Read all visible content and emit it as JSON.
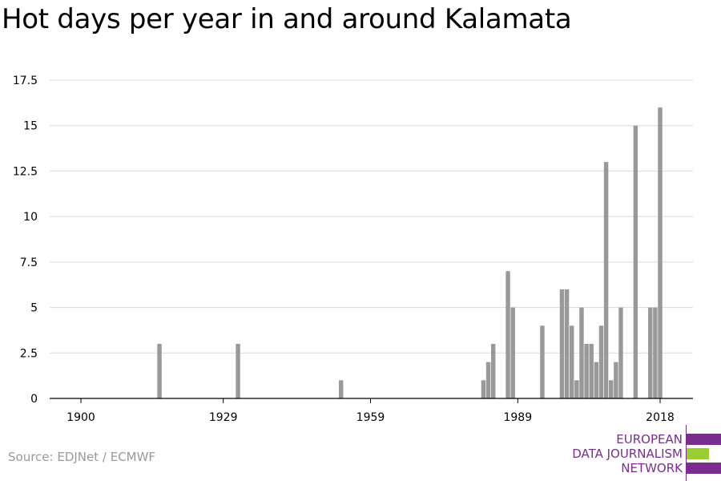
{
  "title": "Hot days per year in and around Kalamata",
  "source": "Source: EDJNet / ECMWF",
  "logo": {
    "line1": "EUROPEAN",
    "line2": "DATA JOURNALISM",
    "line3": "NETWORK",
    "colors": {
      "purple": "#7b2d8e",
      "green": "#9acd32"
    }
  },
  "chart_data": {
    "type": "bar",
    "title": "Hot days per year in and around Kalamata",
    "xlabel": "",
    "ylabel": "",
    "xlim": [
      1900,
      2018
    ],
    "ylim": [
      0,
      17.5
    ],
    "x_ticks": [
      1900,
      1929,
      1959,
      1989,
      2018
    ],
    "y_ticks": [
      0,
      2.5,
      5,
      7.5,
      10,
      12.5,
      15,
      17.5
    ],
    "y_tick_labels": [
      "0",
      "2.5",
      "5",
      "7.5",
      "10",
      "12.5",
      "15",
      "17.5"
    ],
    "grid": true,
    "bar_color": "#999999",
    "x": [
      1916,
      1932,
      1953,
      1982,
      1983,
      1984,
      1987,
      1988,
      1994,
      1998,
      1999,
      2000,
      2001,
      2002,
      2003,
      2004,
      2005,
      2006,
      2007,
      2008,
      2009,
      2010,
      2011,
      2013,
      2016,
      2017,
      2018
    ],
    "values": [
      3,
      3,
      1,
      1,
      2,
      3,
      7,
      5,
      4,
      6,
      6,
      4,
      1,
      5,
      3,
      3,
      2,
      4,
      13,
      1,
      2,
      5,
      0,
      15,
      5,
      5,
      16
    ]
  }
}
